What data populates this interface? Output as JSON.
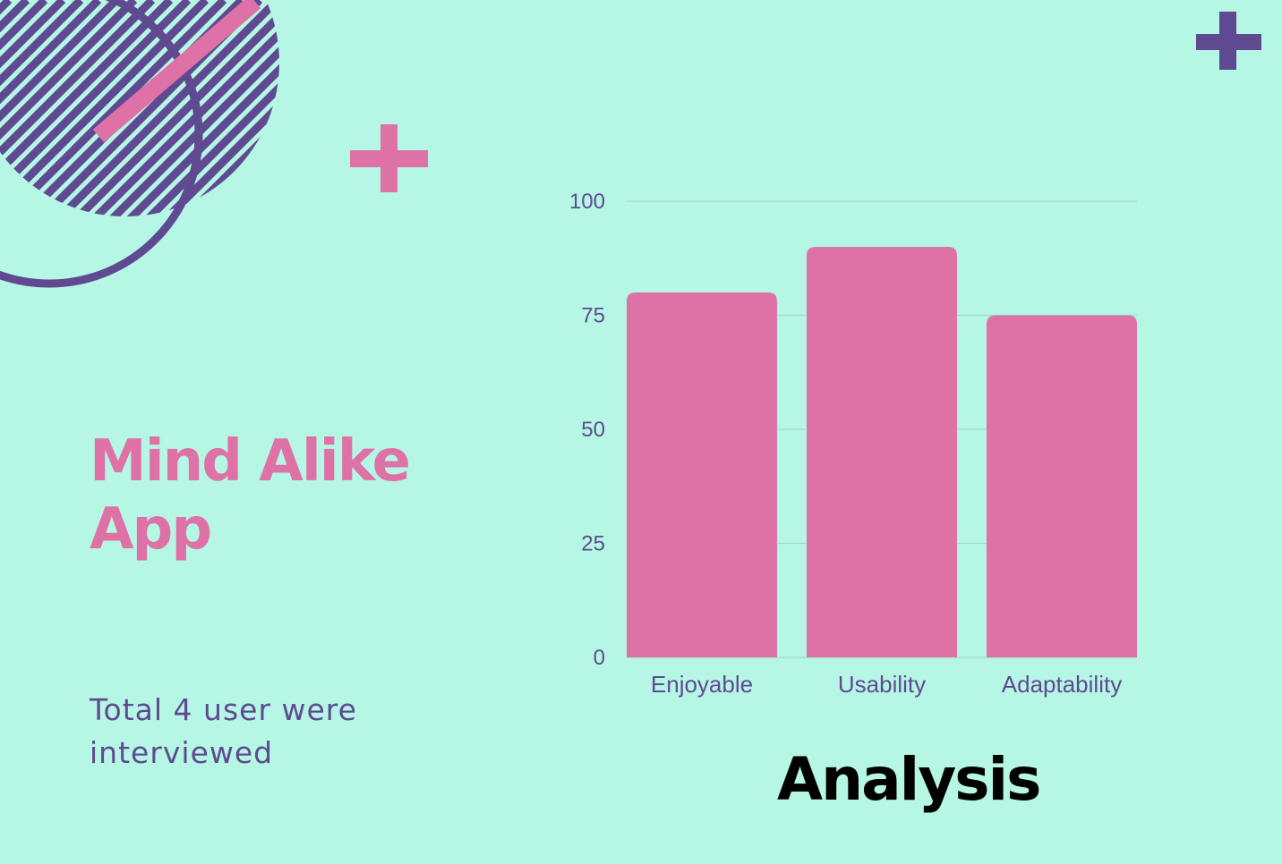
{
  "colors": {
    "background": "#b5f7e4",
    "accent_pink": "#de72a6",
    "accent_purple": "#5f4a91",
    "gridline": "#9fdcc9"
  },
  "decorations": {
    "circle": "striped-circle-outline",
    "slash": "pink-slash",
    "plus_pink": "pink-plus-icon",
    "plus_purple": "purple-plus-icon"
  },
  "title_lines": [
    "Mind Alike",
    "App"
  ],
  "subtitle": "Total 4 user were interviewed",
  "heading": "Analysis",
  "chart_data": {
    "type": "bar",
    "categories": [
      "Enjoyable",
      "Usability",
      "Adaptability"
    ],
    "values": [
      80,
      90,
      75
    ],
    "ylim": [
      0,
      100
    ],
    "yticks": [
      0,
      25,
      50,
      75,
      100
    ],
    "grid": true,
    "legend": false,
    "title": "",
    "xlabel": "",
    "ylabel": ""
  }
}
